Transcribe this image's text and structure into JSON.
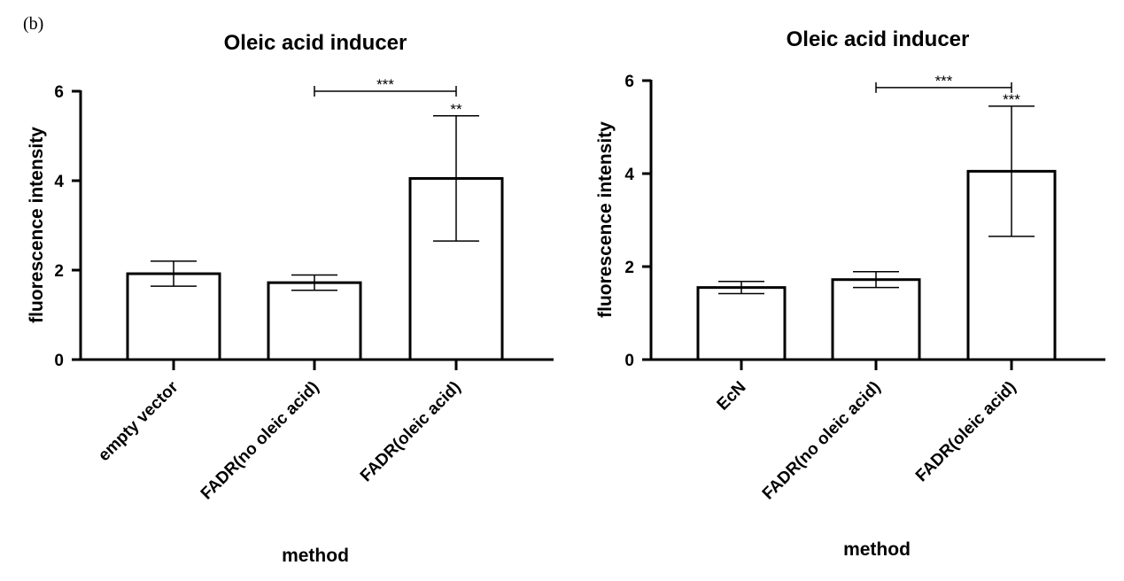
{
  "panel_label": "(b)",
  "chart_data": [
    {
      "type": "bar",
      "title": "Oleic acid inducer",
      "xlabel": "method",
      "ylabel": "fluorescence intensity",
      "ylim": [
        0,
        6
      ],
      "yticks": [
        0,
        2,
        4,
        6
      ],
      "categories": [
        "empty vector",
        "FADR(no oleic acid)",
        "FADR(oleic acid)"
      ],
      "values": [
        1.92,
        1.72,
        4.05
      ],
      "error": [
        0.28,
        0.17,
        1.4
      ],
      "bar_annotations": [
        "",
        "",
        "**"
      ],
      "comparisons": [
        {
          "from": 1,
          "to": 2,
          "label": "***",
          "y": 6.0
        }
      ],
      "grid": false,
      "legend": "none"
    },
    {
      "type": "bar",
      "title": "Oleic acid inducer",
      "xlabel": "method",
      "ylabel": "fluorescence intensity",
      "ylim": [
        0,
        6
      ],
      "yticks": [
        0,
        2,
        4,
        6
      ],
      "categories": [
        "EcN",
        "FADR(no oleic acid)",
        "FADR(oleic acid)"
      ],
      "values": [
        1.55,
        1.72,
        4.05
      ],
      "error": [
        0.13,
        0.17,
        1.4
      ],
      "bar_annotations": [
        "",
        "",
        "***"
      ],
      "comparisons": [
        {
          "from": 1,
          "to": 2,
          "label": "***",
          "y": 5.85
        }
      ],
      "grid": false,
      "legend": "none"
    }
  ]
}
